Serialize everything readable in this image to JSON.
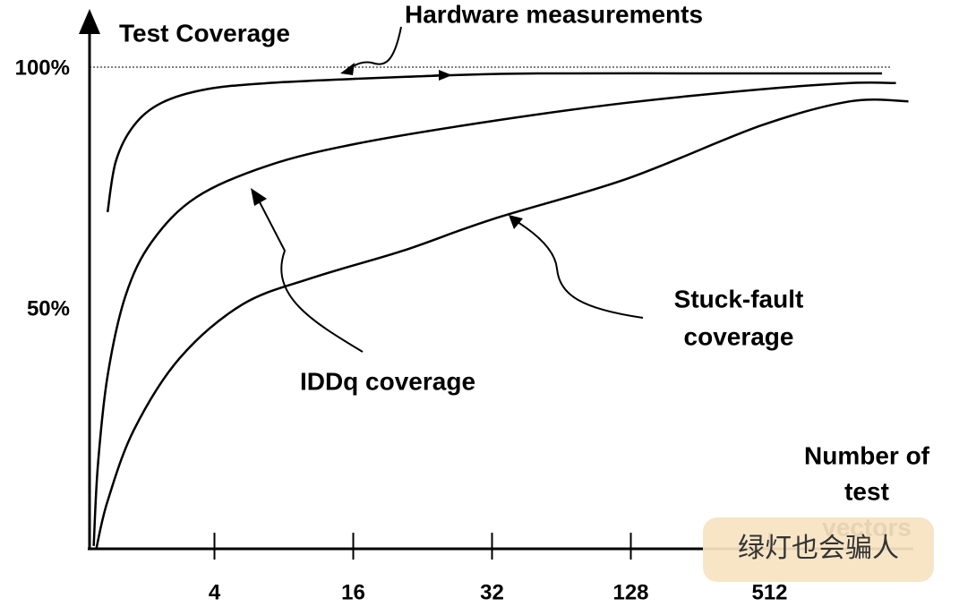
{
  "chart_data": {
    "type": "line",
    "title": "Test Coverage",
    "xlabel": [
      "Number of",
      "test",
      "vectors"
    ],
    "xlim": [
      0,
      6
    ],
    "xticks": [
      {
        "value": 0.9,
        "label": "4"
      },
      {
        "value": 1.9,
        "label": "16"
      },
      {
        "value": 2.9,
        "label": "32"
      },
      {
        "value": 3.9,
        "label": "128"
      },
      {
        "value": 4.9,
        "label": "512"
      }
    ],
    "ylim": [
      0,
      100
    ],
    "yticks": [
      {
        "value": 100,
        "label": "100%"
      },
      {
        "value": 50,
        "label": "50%"
      }
    ],
    "reference_line": 100,
    "series": [
      {
        "color": "#000000",
        "x": [
          0.13,
          0.19,
          0.32,
          0.52,
          0.84,
          1.29,
          1.94,
          2.58,
          3.23,
          4.52,
          5.71
        ],
        "values": [
          69.9,
          80.5,
          87.9,
          92.6,
          95.4,
          96.7,
          97.6,
          98.3,
          98.7,
          98.7,
          98.7
        ]
      },
      {
        "color": "#000000",
        "x": [
          0.03,
          0.06,
          0.13,
          0.26,
          0.45,
          0.77,
          1.29,
          1.94,
          2.9,
          3.87,
          4.84,
          5.48,
          5.81
        ],
        "values": [
          0.6,
          17.3,
          35.9,
          52.6,
          63.8,
          73.0,
          79.6,
          84.2,
          88.8,
          92.6,
          95.4,
          96.7,
          96.7
        ]
      },
      {
        "color": "#000000",
        "x": [
          0.05,
          0.13,
          0.32,
          0.65,
          1.1,
          1.61,
          2.26,
          2.9,
          3.87,
          4.84,
          5.48,
          5.9
        ],
        "values": [
          0.2,
          9.9,
          24.7,
          39.6,
          50.7,
          56.3,
          61.9,
          68.4,
          76.8,
          87.9,
          92.9,
          92.9
        ]
      }
    ],
    "annotations": [
      "Hardware measurements",
      "IDDq coverage",
      "Stuck-fault",
      "coverage"
    ],
    "watermark": "绿灯也会骗人"
  }
}
